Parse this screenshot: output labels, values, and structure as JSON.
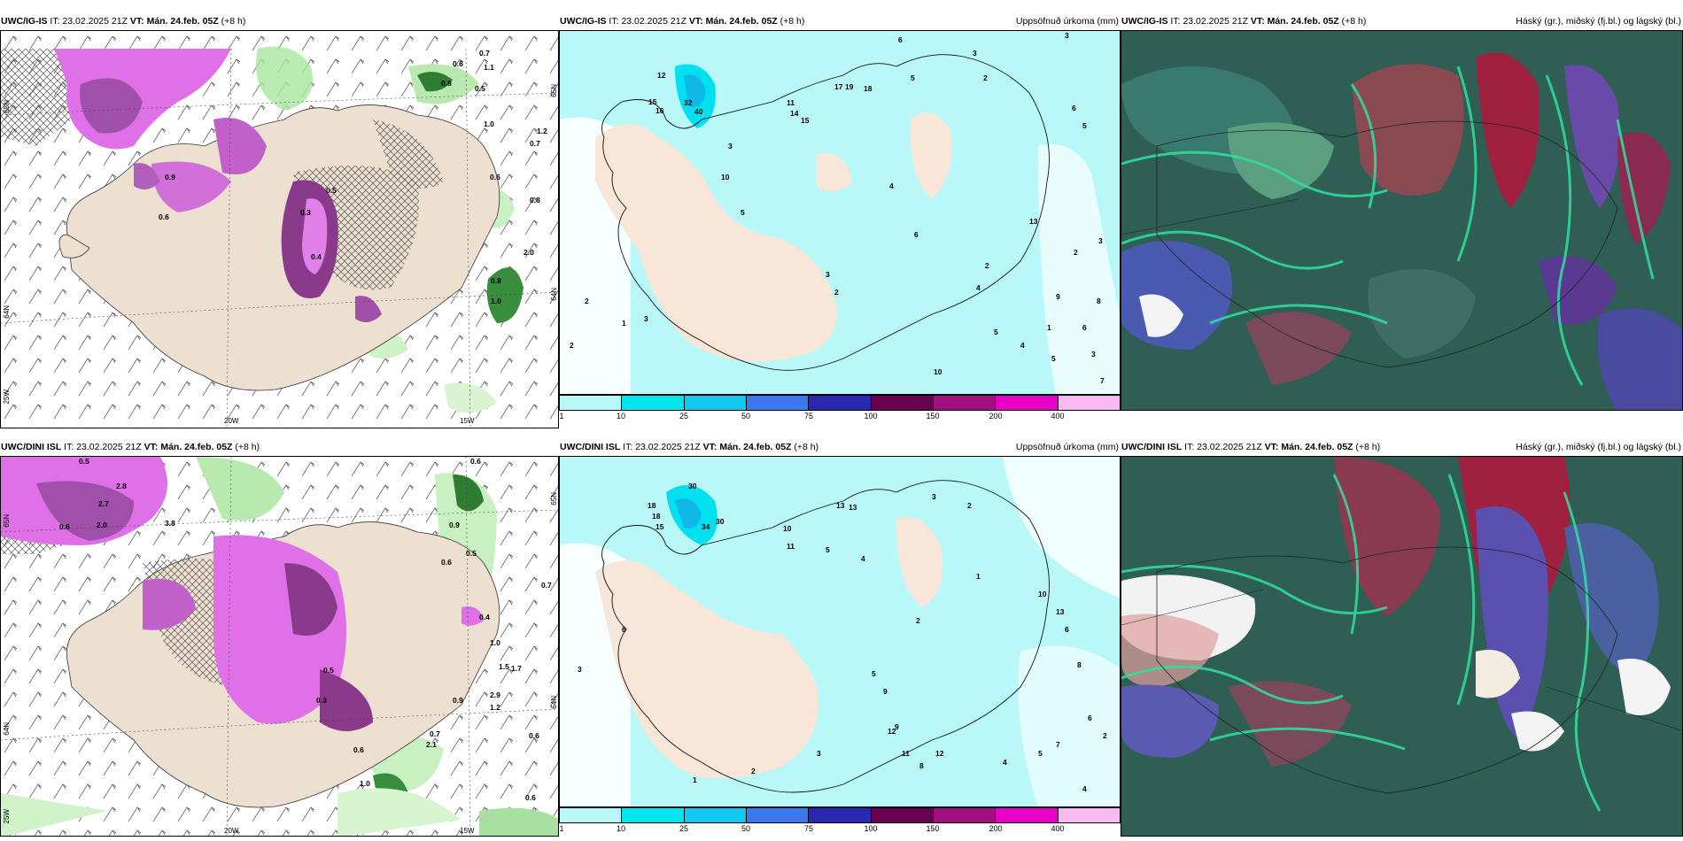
{
  "colorbar": {
    "labels": [
      "1",
      "10",
      "25",
      "50",
      "75",
      "100",
      "150",
      "200",
      "400"
    ],
    "colors": [
      "#b8f8f8",
      "#00e5ee",
      "#10c8f0",
      "#3a78f0",
      "#2828b0",
      "#6a0050",
      "#a01080",
      "#e800c8",
      "#f8b8f0"
    ]
  },
  "rows": [
    {
      "id": "igis",
      "model_label": "UWC/IG-IS",
      "it_label": "IT:",
      "it_value": "23.02.2025 21Z",
      "vt_label": "VT:",
      "vt_value": "Mán. 24.feb. 05Z",
      "lead": "(+8 h)",
      "panel1": {
        "lat_label_top": "65N",
        "lat_label_mid": "64N",
        "lon_label_left": "25W",
        "lon_label_20": "20W",
        "lon_label_15": "15W",
        "right_lat_top": "65N",
        "right_lat_mid": "64N",
        "values": [
          "0.7",
          "0.6",
          "1.1",
          "0.8",
          "0.5",
          "1.0",
          "1.2",
          "0.7",
          "0.6",
          "0.8",
          "2.0",
          "0.8",
          "1.0",
          "0.5",
          "0.4",
          "0.3",
          "0.6",
          "0.9"
        ]
      },
      "panel2": {
        "title_right": "Uppsöfnuð úrkoma (mm)",
        "values": [
          "3",
          "6",
          "3",
          "2",
          "5",
          "6",
          "5",
          "12",
          "15",
          "16",
          "32",
          "40",
          "17",
          "19",
          "18",
          "11",
          "14",
          "15",
          "10",
          "3",
          "5",
          "2",
          "4",
          "6",
          "2",
          "3",
          "2",
          "1",
          "3",
          "2",
          "1",
          "13",
          "8",
          "9",
          "5",
          "4",
          "6",
          "3",
          "7",
          "10",
          "4",
          "2",
          "3",
          "5"
        ]
      },
      "panel3": {
        "title_right": "Háský (gr.), miðský (fj.bl.) og lágský (bl.)"
      }
    },
    {
      "id": "dini",
      "model_label": "UWC/DINI ISL",
      "it_label": "IT:",
      "it_value": "23.02.2025 21Z",
      "vt_label": "VT:",
      "vt_value": "Mán. 24.feb. 05Z",
      "lead": "(+8 h)",
      "panel1": {
        "lat_label_top": "65N",
        "lat_label_mid": "64N",
        "lon_label_left": "25W",
        "lon_label_20": "20W",
        "lon_label_15": "15W",
        "right_lat_top": "65N",
        "right_lat_mid": "64N",
        "values": [
          "0.5",
          "2.8",
          "2.7",
          "3.8",
          "2.0",
          "0.6",
          "0.6",
          "0.9",
          "0.7",
          "0.5",
          "0.6",
          "0.4",
          "1.0",
          "1.5",
          "1.7",
          "2.9",
          "1.2",
          "0.7",
          "0.6",
          "0.9",
          "2.1",
          "0.6",
          "1.0",
          "0.6",
          "0.3",
          "0.5"
        ]
      },
      "panel2": {
        "title_right": "Uppsöfnuð úrkoma (mm)",
        "values": [
          "30",
          "18",
          "18",
          "15",
          "34",
          "30",
          "13",
          "13",
          "10",
          "11",
          "5",
          "4",
          "3",
          "2",
          "1",
          "6",
          "8",
          "9",
          "12",
          "11",
          "8",
          "4",
          "5",
          "3",
          "2",
          "6",
          "10",
          "13",
          "2",
          "5",
          "7",
          "4",
          "2",
          "1",
          "3",
          "6",
          "9",
          "12"
        ]
      },
      "panel3": {
        "title_right": "Háský (gr.), miðský (fj.bl.) og lágský (bl.)"
      }
    }
  ]
}
